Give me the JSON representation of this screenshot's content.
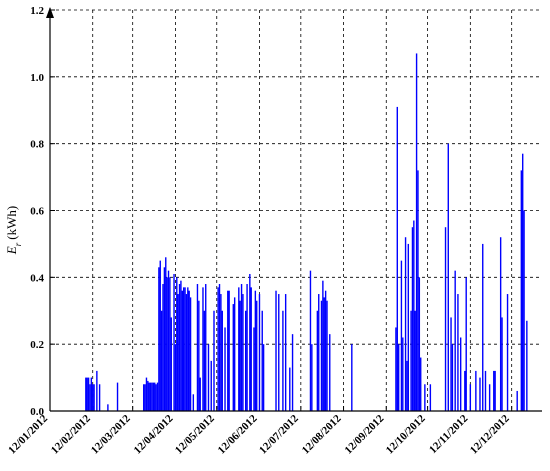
{
  "chart_data": {
    "type": "bar",
    "color": "#0000ff",
    "grid": true,
    "ylabel": {
      "symbol": "E",
      "subscript": "r",
      "unit": "(kWh)"
    },
    "ylim": [
      0,
      1.2
    ],
    "yticks": [
      {
        "value": 0,
        "label": "0.0"
      },
      0.2,
      0.4,
      0.6,
      0.8,
      {
        "value": 1,
        "label": "1.0"
      },
      1.2
    ],
    "xlim": [
      "12/01/2012",
      "03/01/2013"
    ],
    "xticks": [
      "12/01/2012",
      "12/02/2012",
      "12/03/2012",
      "12/04/2012",
      "12/05/2012",
      "12/06/2012",
      "12/07/2012",
      "12/08/2012",
      "12/09/2012",
      "12/10/2012",
      "12/11/2012",
      "12/12/2012"
    ],
    "x": [
      "07/02/2012",
      "08/02/2012",
      "09/02/2012",
      "10/02/2012",
      "11/02/2012",
      "12/02/2012",
      "13/02/2012",
      "15/02/2012",
      "17/02/2012",
      "23/02/2012",
      "01/03/2012",
      "20/03/2012",
      "21/03/2012",
      "22/03/2012",
      "23/03/2012",
      "24/03/2012",
      "25/03/2012",
      "26/03/2012",
      "27/03/2012",
      "28/03/2012",
      "29/03/2012",
      "30/03/2012",
      "31/03/2012",
      "01/04/2012",
      "02/04/2012",
      "03/04/2012",
      "04/04/2012",
      "05/04/2012",
      "06/04/2012",
      "07/04/2012",
      "08/04/2012",
      "09/04/2012",
      "11/04/2012",
      "12/04/2012",
      "13/04/2012",
      "14/04/2012",
      "15/04/2012",
      "16/04/2012",
      "17/04/2012",
      "18/04/2012",
      "19/04/2012",
      "20/04/2012",
      "21/04/2012",
      "22/04/2012",
      "23/04/2012",
      "25/04/2012",
      "28/04/2012",
      "29/04/2012",
      "30/04/2012",
      "02/05/2012",
      "03/05/2012",
      "04/05/2012",
      "06/05/2012",
      "08/05/2012",
      "10/05/2012",
      "13/05/2012",
      "14/05/2012",
      "15/05/2012",
      "16/05/2012",
      "18/05/2012",
      "20/05/2012",
      "21/05/2012",
      "24/05/2012",
      "25/05/2012",
      "28/05/2012",
      "29/05/2012",
      "30/05/2012",
      "31/05/2012",
      "02/06/2012",
      "03/06/2012",
      "05/06/2012",
      "06/06/2012",
      "08/06/2012",
      "09/06/2012",
      "10/06/2012",
      "12/06/2012",
      "14/06/2012",
      "15/06/2012",
      "24/06/2012",
      "26/06/2012",
      "29/06/2012",
      "01/07/2012",
      "04/07/2012",
      "06/07/2012",
      "19/07/2012",
      "20/07/2012",
      "24/07/2012",
      "25/07/2012",
      "27/07/2012",
      "28/07/2012",
      "29/07/2012",
      "30/07/2012",
      "31/07/2012",
      "02/08/2012",
      "18/08/2012",
      "19/09/2012",
      "20/09/2012",
      "21/09/2012",
      "23/09/2012",
      "24/09/2012",
      "26/09/2012",
      "27/09/2012",
      "28/09/2012",
      "30/09/2012",
      "01/10/2012",
      "02/10/2012",
      "03/10/2012",
      "04/10/2012",
      "05/10/2012",
      "06/10/2012",
      "07/10/2012",
      "10/10/2012",
      "14/10/2012",
      "25/10/2012",
      "27/10/2012",
      "29/10/2012",
      "30/10/2012",
      "01/11/2012",
      "03/11/2012",
      "05/11/2012",
      "08/11/2012",
      "09/11/2012",
      "12/11/2012",
      "16/11/2012",
      "19/11/2012",
      "21/11/2012",
      "23/11/2012",
      "26/11/2012",
      "29/11/2012",
      "30/11/2012",
      "04/12/2012",
      "05/12/2012",
      "09/12/2012",
      "16/12/2012",
      "19/12/2012",
      "20/12/2012",
      "21/12/2012",
      "23/12/2012"
    ],
    "values": [
      0.1,
      0.1,
      0.1,
      0.08,
      0.1,
      0.08,
      0.08,
      0.12,
      0.08,
      0.02,
      0.085,
      0.08,
      0.08,
      0.1,
      0.09,
      0.085,
      0.085,
      0.085,
      0.085,
      0.085,
      0.08,
      0.085,
      0.43,
      0.45,
      0.3,
      0.38,
      0.43,
      0.46,
      0.4,
      0.42,
      0.4,
      0.28,
      0.41,
      0.2,
      0.4,
      0.35,
      0.38,
      0.39,
      0.36,
      0.37,
      0.37,
      0.35,
      0.37,
      0.36,
      0.34,
      0.05,
      0.38,
      0.33,
      0.1,
      0.37,
      0.3,
      0.38,
      0.2,
      0.15,
      0.3,
      0.37,
      0.38,
      0.35,
      0.3,
      0.25,
      0.36,
      0.36,
      0.32,
      0.34,
      0.37,
      0.33,
      0.38,
      0.35,
      0.3,
      0.38,
      0.41,
      0.37,
      0.25,
      0.36,
      0.33,
      0.35,
      0.3,
      0.2,
      0.36,
      0.35,
      0.3,
      0.35,
      0.13,
      0.23,
      0.42,
      0.2,
      0.3,
      0.35,
      0.33,
      0.39,
      0.34,
      0.36,
      0.33,
      0.23,
      0.2,
      0.25,
      0.91,
      0.2,
      0.45,
      0.22,
      0.52,
      0.15,
      0.5,
      0.3,
      0.55,
      0.57,
      0.3,
      1.07,
      0.72,
      0.4,
      0.16,
      0.08,
      0.08,
      0.55,
      0.8,
      0.28,
      0.2,
      0.42,
      0.35,
      0.22,
      0.12,
      0.4,
      0.08,
      0.12,
      0.1,
      0.5,
      0.12,
      0.08,
      0.12,
      0.12,
      0.52,
      0.28,
      0.35,
      0.06,
      0.72,
      0.77,
      0.6,
      0.27
    ]
  }
}
